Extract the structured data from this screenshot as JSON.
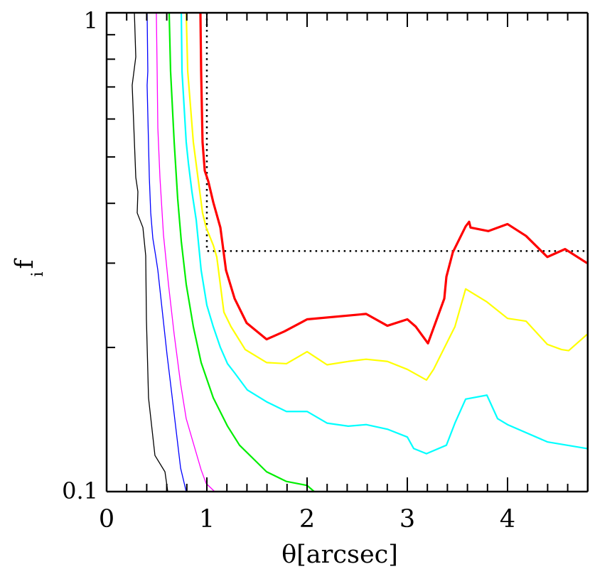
{
  "chart_data": {
    "type": "line",
    "xlabel": "θ[arcsec]",
    "ylabel": "f",
    "ylabel_subscript": "i",
    "xlim": [
      0,
      4.8
    ],
    "ylim": [
      0.1,
      1
    ],
    "y_scale": "log",
    "grid": false,
    "x_ticks": [
      "0",
      "1",
      "2",
      "3",
      "4"
    ],
    "y_ticks": [
      "0.1",
      "1"
    ],
    "series": [
      {
        "color": "#000000",
        "width": "thin",
        "x": [
          0.277,
          0.291,
          0.255,
          0.291,
          0.312,
          0.305,
          0.362,
          0.39,
          0.397,
          0.418,
          0.482,
          0.582,
          0.61
        ],
        "y": [
          1,
          0.809,
          0.706,
          0.453,
          0.423,
          0.382,
          0.356,
          0.311,
          0.229,
          0.157,
          0.119,
          0.11,
          0.1
        ]
      },
      {
        "color": "#0000ff",
        "width": "thin",
        "x": [
          0.404,
          0.411,
          0.404,
          0.426,
          0.44,
          0.461,
          0.489,
          0.511,
          0.603,
          0.638,
          0.738,
          0.794
        ],
        "y": [
          1,
          0.755,
          0.706,
          0.453,
          0.382,
          0.338,
          0.311,
          0.29,
          0.193,
          0.168,
          0.112,
          0.1
        ]
      },
      {
        "color": "#ff00ff",
        "width": "thin",
        "x": [
          0.496,
          0.504,
          0.511,
          0.532,
          0.567,
          0.617,
          0.674,
          0.738,
          0.794,
          0.943,
          0.993,
          1.078
        ],
        "y": [
          1,
          0.755,
          0.575,
          0.453,
          0.344,
          0.271,
          0.213,
          0.168,
          0.142,
          0.111,
          0.104,
          0.1
        ]
      },
      {
        "color": "#00ee00",
        "width": "medium",
        "x": [
          0.624,
          0.638,
          0.674,
          0.709,
          0.745,
          0.794,
          0.865,
          0.943,
          1.064,
          1.206,
          1.326,
          1.596,
          1.794,
          2.0,
          2.071
        ],
        "y": [
          1,
          0.755,
          0.537,
          0.409,
          0.333,
          0.271,
          0.221,
          0.186,
          0.157,
          0.137,
          0.125,
          0.11,
          0.105,
          0.103,
          0.1
        ]
      },
      {
        "color": "#00ffff",
        "width": "medium",
        "x": [
          0.745,
          0.752,
          0.794,
          0.816,
          0.851,
          0.894,
          0.943,
          1.0,
          1.064,
          1.135,
          1.206,
          1.277,
          1.404,
          1.596,
          1.794,
          2.0,
          2.199,
          2.411,
          2.589,
          2.801,
          3.0,
          3.064,
          3.191,
          3.39,
          3.475,
          3.582,
          3.794,
          3.901,
          4.0,
          4.397,
          4.794
        ],
        "y": [
          1,
          0.755,
          0.537,
          0.485,
          0.423,
          0.369,
          0.29,
          0.245,
          0.221,
          0.2,
          0.185,
          0.177,
          0.163,
          0.154,
          0.147,
          0.147,
          0.139,
          0.137,
          0.138,
          0.135,
          0.13,
          0.123,
          0.12,
          0.125,
          0.139,
          0.156,
          0.159,
          0.142,
          0.138,
          0.127,
          0.123
        ]
      },
      {
        "color": "#ffff00",
        "width": "medium",
        "x": [
          0.794,
          0.809,
          0.865,
          0.957,
          0.993,
          1.064,
          1.099,
          1.17,
          1.241,
          1.383,
          1.596,
          1.794,
          2.0,
          2.199,
          2.411,
          2.589,
          2.801,
          3.0,
          3.191,
          3.262,
          3.475,
          3.582,
          3.794,
          4.0,
          4.184,
          4.397,
          4.539,
          4.61,
          4.794
        ],
        "y": [
          1,
          0.755,
          0.537,
          0.382,
          0.356,
          0.327,
          0.309,
          0.237,
          0.221,
          0.198,
          0.186,
          0.185,
          0.196,
          0.184,
          0.187,
          0.189,
          0.187,
          0.18,
          0.171,
          0.18,
          0.221,
          0.265,
          0.249,
          0.23,
          0.227,
          0.203,
          0.198,
          0.197,
          0.213
        ]
      },
      {
        "color": "#ff0000",
        "width": "thick",
        "x": [
          0.936,
          0.943,
          0.957,
          0.979,
          1.014,
          1.064,
          1.135,
          1.191,
          1.277,
          1.397,
          1.596,
          1.773,
          1.95,
          2.0,
          2.589,
          2.801,
          3.0,
          3.085,
          3.206,
          3.369,
          3.39,
          3.454,
          3.582,
          3.617,
          3.631,
          3.809,
          4.0,
          4.184,
          4.397,
          4.574,
          4.794
        ],
        "y": [
          1,
          0.755,
          0.537,
          0.468,
          0.445,
          0.402,
          0.356,
          0.29,
          0.253,
          0.225,
          0.208,
          0.216,
          0.226,
          0.229,
          0.235,
          0.222,
          0.229,
          0.221,
          0.204,
          0.253,
          0.281,
          0.316,
          0.358,
          0.366,
          0.356,
          0.35,
          0.362,
          0.342,
          0.309,
          0.321,
          0.3
        ]
      }
    ],
    "reference_lines": [
      {
        "style": "dotted",
        "color": "#000000",
        "x": [
          1.0,
          1.0,
          4.8
        ],
        "y": [
          1,
          0.318,
          0.318
        ]
      }
    ]
  }
}
